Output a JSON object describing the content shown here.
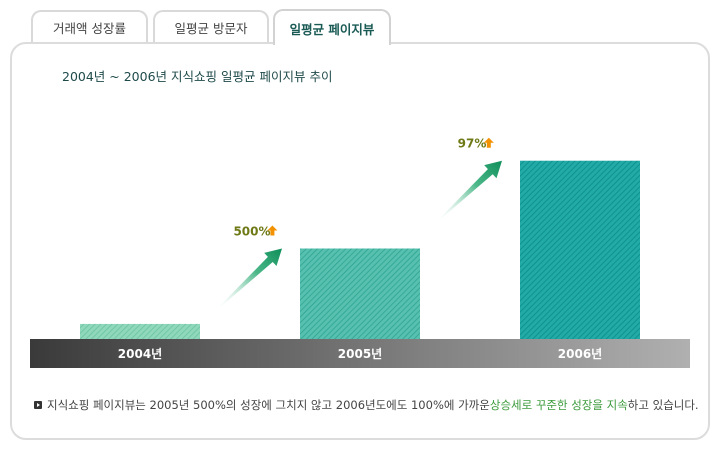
{
  "tabs": [
    {
      "label": "거래액 성장률",
      "active": false
    },
    {
      "label": "일평균 방문자",
      "active": false
    },
    {
      "label": "일평균 페이지뷰",
      "active": true
    }
  ],
  "colors": {
    "bar_2004": "#7ccfae",
    "bar_2005": "#3fb5a5",
    "bar_2006": "#16a09c",
    "arrow": "#12935f",
    "badge": "#6f7a16",
    "badge_arrow": "#f39200",
    "highlight": "#3d9b3d"
  },
  "chart_data": {
    "type": "bar",
    "title": "2004년 ~ 2006년 지식쇼핑 일평균 페이지뷰 추이",
    "categories": [
      "2004년",
      "2005년",
      "2006년"
    ],
    "values": [
      1,
      6,
      11.82
    ],
    "ylim": [
      0,
      12
    ],
    "annotations": [
      {
        "label": "500%",
        "between": [
          "2004년",
          "2005년"
        ]
      },
      {
        "label": "97%",
        "between": [
          "2005년",
          "2006년"
        ]
      }
    ],
    "grid": false,
    "legend": "none"
  },
  "note": {
    "text_before": "지식쇼핑 페이지뷰는 2005년 500%의 성장에 그치지 않고 2006년도에도 100%에 가까운 ",
    "highlight": "상승세로 꾸준한 성장을 지속",
    "text_after": "하고 있습니다."
  }
}
